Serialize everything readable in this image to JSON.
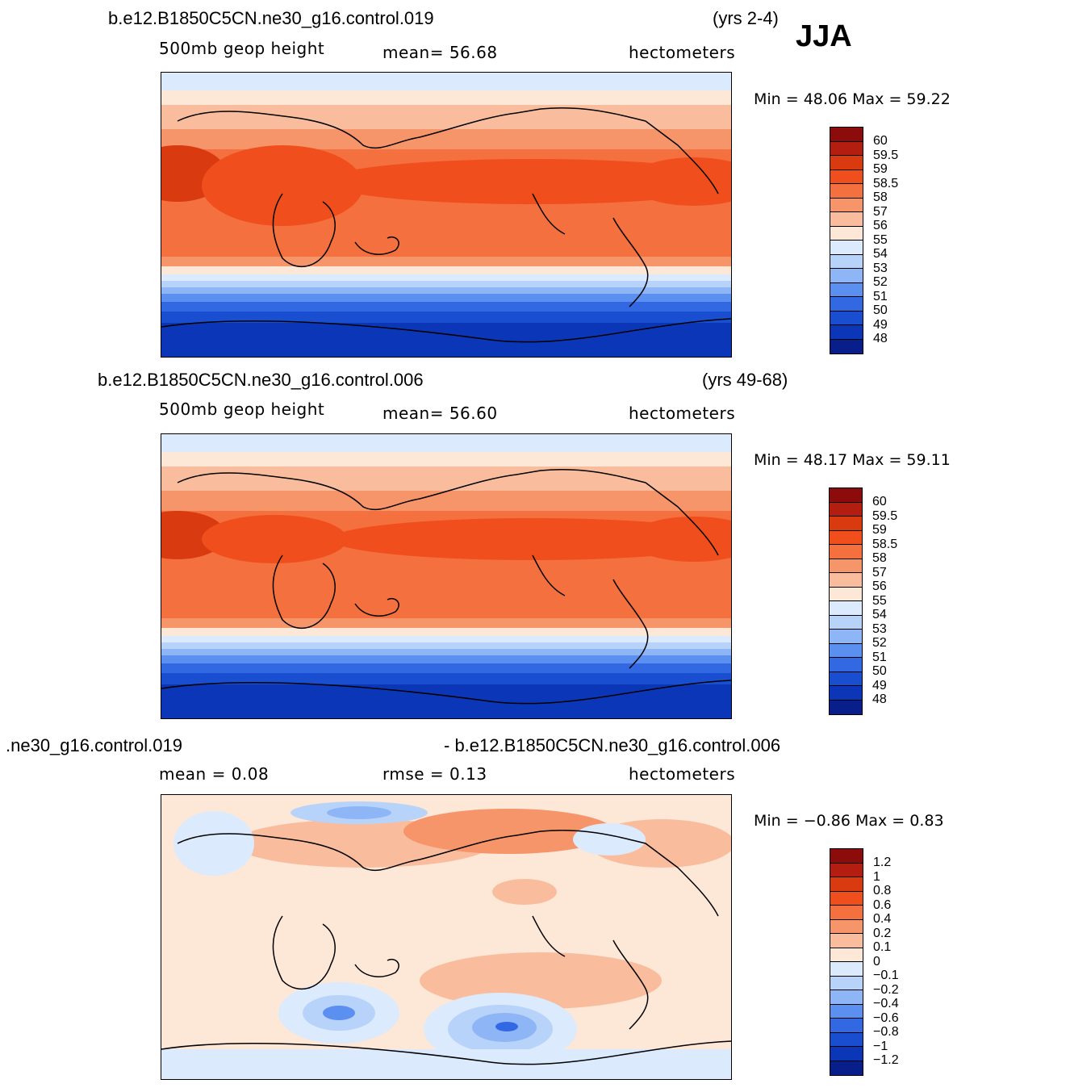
{
  "season": "JJA",
  "panels": [
    {
      "case": "b.e12.B1850C5CN.ne30_g16.control.019",
      "years": "(yrs 2-4)",
      "variable": "500mb  geop  height",
      "stat": "mean=   56.68",
      "units": "hectometers",
      "minmax": "Min =   48.06  Max =   59.22",
      "levels": [
        "60",
        "59.5",
        "59",
        "58.5",
        "58",
        "57",
        "56",
        "55",
        "54",
        "53",
        "52",
        "51",
        "50",
        "49",
        "48"
      ]
    },
    {
      "case": "b.e12.B1850C5CN.ne30_g16.control.006",
      "years": "(yrs 49-68)",
      "variable": "500mb  geop  height",
      "stat": "mean=   56.60",
      "units": "hectometers",
      "minmax": "Min =   48.17  Max =   59.11",
      "levels": [
        "60",
        "59.5",
        "59",
        "58.5",
        "58",
        "57",
        "56",
        "55",
        "54",
        "53",
        "52",
        "51",
        "50",
        "49",
        "48"
      ]
    },
    {
      "case_left": ".ne30_g16.control.019",
      "case_right": "- b.e12.B1850C5CN.ne30_g16.control.006",
      "stat1": "mean =    0.08",
      "stat2": "rmse =    0.13",
      "units": "hectometers",
      "minmax": "Min =   −0.86  Max =    0.83",
      "levels": [
        "1.2",
        "1",
        "0.8",
        "0.6",
        "0.4",
        "0.2",
        "0.1",
        "0",
        "−0.1",
        "−0.2",
        "−0.4",
        "−0.6",
        "−0.8",
        "−1",
        "−1.2"
      ]
    }
  ],
  "colors": {
    "colorbar": [
      "#8c0b0b",
      "#b31e10",
      "#d93a0f",
      "#f04e1d",
      "#f4703f",
      "#f6946a",
      "#f9bd9e",
      "#fde7d7",
      "#dbeafd",
      "#b8d3fa",
      "#8eb6f6",
      "#5b8ff0",
      "#3268e2",
      "#1a4ed0",
      "#0c36b8",
      "#081e8a"
    ]
  }
}
